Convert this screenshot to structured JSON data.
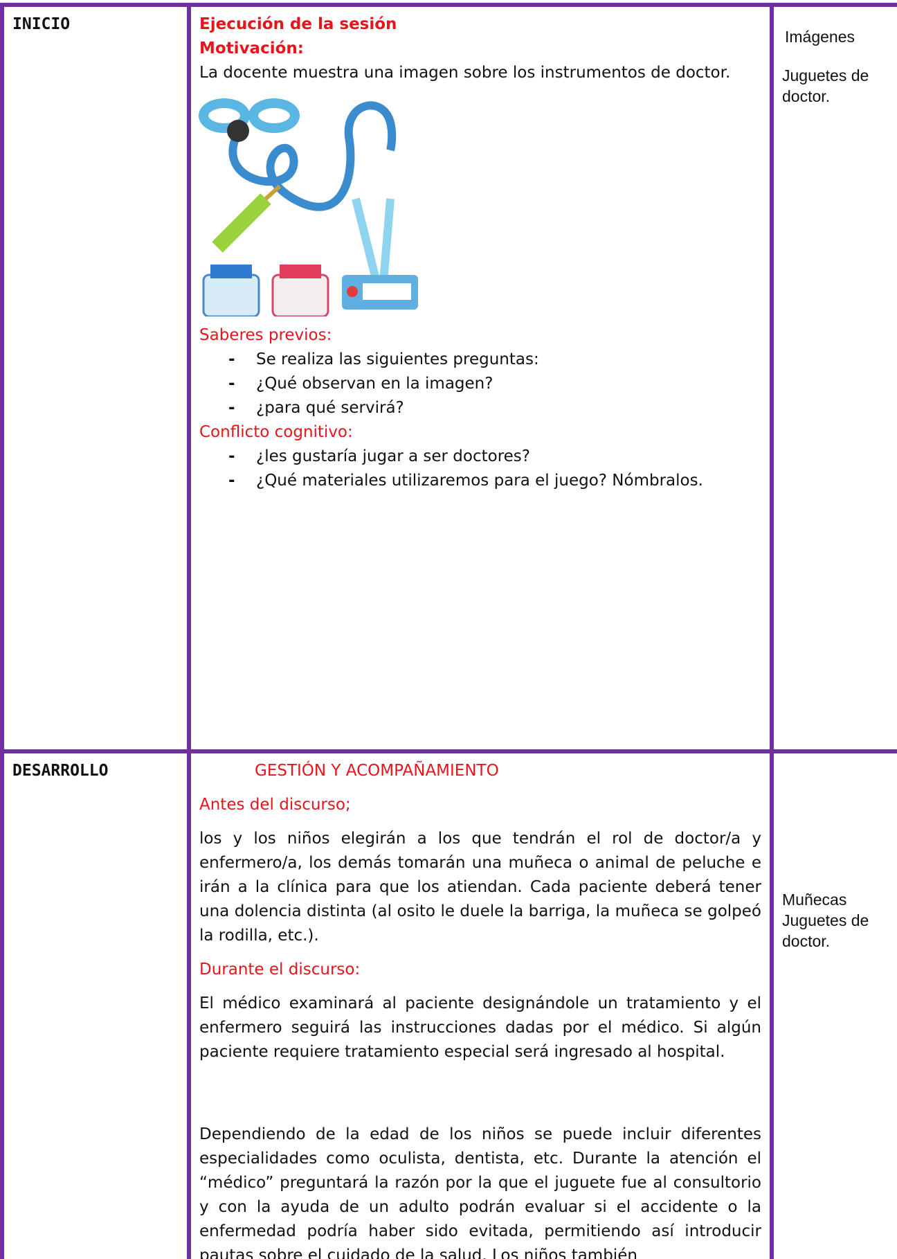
{
  "table": {
    "rows": [
      {
        "phase": "INICIO",
        "heading": "Ejecución de la sesión",
        "motivation_label": "Motivación:",
        "motivation_text": "La docente muestra una imagen sobre los instrumentos de doctor.",
        "prior_label": "Saberes previos:",
        "prior_items": [
          "Se realiza las siguientes preguntas:",
          "¿Qué observan en la imagen?",
          "¿para qué servirá?"
        ],
        "conflict_label": "Conflicto cognitivo:",
        "conflict_items": [
          "¿les gustaría jugar a ser doctores?",
          "¿Qué materiales utilizaremos para el juego? Nómbralos."
        ],
        "resources": [
          "Imágenes",
          "Juguetes de doctor."
        ]
      },
      {
        "phase": "DESARROLLO",
        "heading": "GESTIÓN Y ACOMPAÑAMIENTO",
        "before_label": "Antes del discurso;",
        "before_text": "los y los niños elegirán a los que tendrán el rol de doctor/a y enfermero/a, los demás tomarán una muñeca o animal de peluche e irán a la clínica para que los atiendan. Cada paciente deberá tener una dolencia distinta (al osito le duele la barriga, la muñeca se golpeó la rodilla, etc.).",
        "during_label": "Durante el discurso:",
        "during_texts": [
          "El médico examinará al paciente designándole un tratamiento y el enfermero seguirá las instrucciones dadas por el médico. Si algún paciente requiere tratamiento especial será ingresado al hospital.",
          "Dependiendo de la edad de los niños se puede incluir diferentes especialidades como oculista, dentista, etc. Durante la atención el “médico” preguntará la razón por la que el juguete fue al consultorio y con la ayuda de un adulto podrán evaluar si el accidente o la enfermedad podría haber sido evitada, permitiendo así introducir pautas sobre el cuidado de la salud. Los niños también"
        ],
        "resources": [
          "Muñecas",
          "Juguetes de doctor."
        ]
      }
    ]
  }
}
